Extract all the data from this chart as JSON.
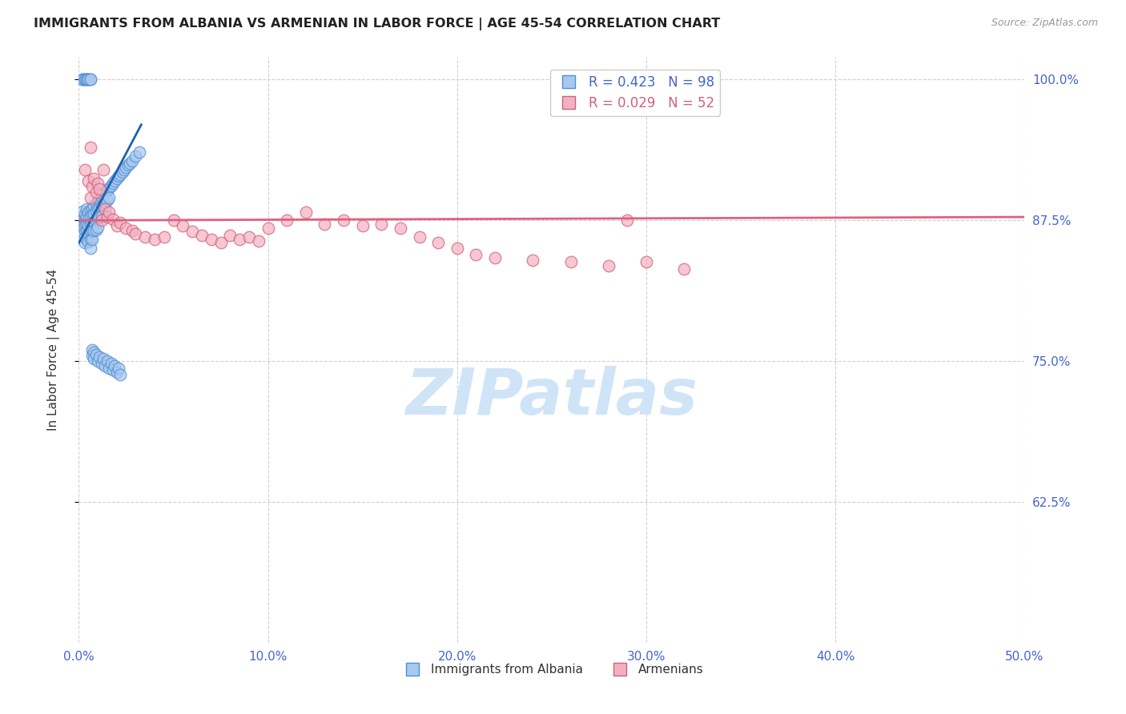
{
  "title": "IMMIGRANTS FROM ALBANIA VS ARMENIAN IN LABOR FORCE | AGE 45-54 CORRELATION CHART",
  "source": "Source: ZipAtlas.com",
  "ylabel": "In Labor Force | Age 45-54",
  "legend_labels_bottom": [
    "Immigrants from Albania",
    "Armenians"
  ],
  "albania_color": "#a8c8f0",
  "armenian_color": "#f4b0c0",
  "albania_edge": "#5090d0",
  "armenian_edge": "#d06080",
  "trend_albania_color": "#2060b0",
  "trend_armenian_color": "#e06080",
  "grid_color": "#d0d0d0",
  "title_color": "#222222",
  "axis_label_color": "#333333",
  "right_tick_color": "#4466cc",
  "bottom_tick_color": "#4466cc",
  "watermark_text": "ZIPatlas",
  "watermark_color": "#d0e4f8",
  "xlim": [
    0.0,
    0.5
  ],
  "ylim": [
    0.5,
    1.02
  ],
  "yticks": [
    0.625,
    0.75,
    0.875,
    1.0
  ],
  "ytick_labels": [
    "62.5%",
    "75.0%",
    "87.5%",
    "100.0%"
  ],
  "xticks": [
    0.0,
    0.1,
    0.2,
    0.3,
    0.4,
    0.5
  ],
  "xtick_labels": [
    "0.0%",
    "10.0%",
    "20.0%",
    "30.0%",
    "40.0%",
    "50.0%"
  ],
  "albania_x": [
    0.002,
    0.002,
    0.002,
    0.003,
    0.003,
    0.003,
    0.003,
    0.003,
    0.003,
    0.004,
    0.004,
    0.004,
    0.004,
    0.004,
    0.005,
    0.005,
    0.005,
    0.005,
    0.005,
    0.006,
    0.006,
    0.006,
    0.006,
    0.006,
    0.006,
    0.007,
    0.007,
    0.007,
    0.007,
    0.007,
    0.008,
    0.008,
    0.008,
    0.008,
    0.009,
    0.009,
    0.009,
    0.009,
    0.01,
    0.01,
    0.01,
    0.01,
    0.011,
    0.011,
    0.011,
    0.012,
    0.012,
    0.012,
    0.013,
    0.013,
    0.014,
    0.014,
    0.015,
    0.015,
    0.016,
    0.016,
    0.017,
    0.018,
    0.019,
    0.02,
    0.021,
    0.022,
    0.023,
    0.024,
    0.025,
    0.026,
    0.027,
    0.028,
    0.03,
    0.032,
    0.002,
    0.002,
    0.003,
    0.003,
    0.004,
    0.004,
    0.005,
    0.005,
    0.006,
    0.006,
    0.007,
    0.007,
    0.008,
    0.008,
    0.009,
    0.01,
    0.011,
    0.012,
    0.013,
    0.014,
    0.015,
    0.016,
    0.017,
    0.018,
    0.019,
    0.02,
    0.021,
    0.022
  ],
  "albania_y": [
    0.883,
    0.875,
    0.87,
    0.88,
    0.875,
    0.87,
    0.865,
    0.86,
    0.855,
    0.885,
    0.878,
    0.872,
    0.865,
    0.858,
    0.882,
    0.876,
    0.87,
    0.863,
    0.856,
    0.884,
    0.878,
    0.872,
    0.865,
    0.858,
    0.85,
    0.886,
    0.88,
    0.873,
    0.866,
    0.858,
    0.888,
    0.881,
    0.874,
    0.866,
    0.89,
    0.883,
    0.875,
    0.867,
    0.892,
    0.885,
    0.877,
    0.869,
    0.894,
    0.886,
    0.878,
    0.896,
    0.888,
    0.879,
    0.898,
    0.889,
    0.9,
    0.891,
    0.902,
    0.893,
    0.904,
    0.895,
    0.906,
    0.908,
    0.91,
    0.912,
    0.914,
    0.916,
    0.918,
    0.92,
    0.922,
    0.924,
    0.926,
    0.928,
    0.932,
    0.936,
    1.0,
    1.0,
    1.0,
    1.0,
    1.0,
    1.0,
    1.0,
    1.0,
    1.0,
    1.0,
    0.76,
    0.755,
    0.758,
    0.752,
    0.756,
    0.75,
    0.754,
    0.748,
    0.752,
    0.746,
    0.75,
    0.744,
    0.748,
    0.742,
    0.746,
    0.74,
    0.744,
    0.738
  ],
  "armenian_x": [
    0.003,
    0.005,
    0.006,
    0.007,
    0.008,
    0.009,
    0.01,
    0.011,
    0.012,
    0.013,
    0.014,
    0.015,
    0.016,
    0.018,
    0.02,
    0.022,
    0.025,
    0.028,
    0.03,
    0.035,
    0.04,
    0.045,
    0.05,
    0.055,
    0.06,
    0.065,
    0.07,
    0.075,
    0.08,
    0.085,
    0.09,
    0.095,
    0.1,
    0.11,
    0.12,
    0.13,
    0.14,
    0.15,
    0.16,
    0.17,
    0.18,
    0.19,
    0.2,
    0.21,
    0.22,
    0.24,
    0.26,
    0.28,
    0.3,
    0.32,
    0.006,
    0.29
  ],
  "armenian_y": [
    0.92,
    0.91,
    0.895,
    0.905,
    0.912,
    0.9,
    0.908,
    0.903,
    0.875,
    0.92,
    0.885,
    0.878,
    0.882,
    0.876,
    0.87,
    0.873,
    0.868,
    0.866,
    0.863,
    0.86,
    0.858,
    0.86,
    0.875,
    0.87,
    0.865,
    0.862,
    0.858,
    0.855,
    0.862,
    0.858,
    0.86,
    0.857,
    0.868,
    0.875,
    0.882,
    0.872,
    0.875,
    0.87,
    0.872,
    0.868,
    0.86,
    0.855,
    0.85,
    0.845,
    0.842,
    0.84,
    0.838,
    0.835,
    0.838,
    0.832,
    0.94,
    0.875
  ],
  "r_albania": 0.423,
  "n_albania": 98,
  "r_armenian": 0.029,
  "n_armenian": 52,
  "albania_trend_x": [
    0.0,
    0.033
  ],
  "albania_trend_y": [
    0.855,
    0.96
  ],
  "armenian_trend_x": [
    0.0,
    0.5
  ],
  "armenian_trend_y": [
    0.875,
    0.878
  ]
}
